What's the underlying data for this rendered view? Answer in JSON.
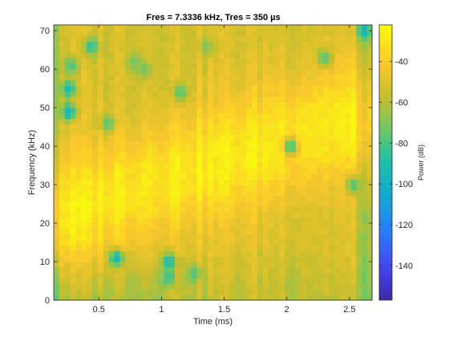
{
  "chart_data": {
    "type": "heatmap",
    "title": "Fres = 7.3336 kHz, Tres = 350 µs",
    "xlabel": "Time (ms)",
    "ylabel": "Frequency (kHz)",
    "xlim": [
      0.14,
      2.68
    ],
    "ylim": [
      0,
      71.5
    ],
    "xticks": [
      0.5,
      1,
      1.5,
      2,
      2.5
    ],
    "xtick_labels": [
      "0.5",
      "1",
      "1.5",
      "2",
      "2.5"
    ],
    "yticks": [
      0,
      10,
      20,
      30,
      40,
      50,
      60,
      70
    ],
    "ytick_labels": [
      "0",
      "10",
      "20",
      "30",
      "40",
      "50",
      "60",
      "70"
    ],
    "grid": false,
    "colormap": "parula",
    "colorbar": {
      "label": "Power (dB)",
      "range": [
        -157,
        -22
      ],
      "ticks": [
        -140,
        -120,
        -100,
        -80,
        -60,
        -40
      ],
      "tick_labels": [
        "-140",
        "-120",
        "-100",
        "-80",
        "-60",
        "-40"
      ]
    },
    "time_bins": {
      "start": 0.14,
      "width": 0.0439,
      "count": 58
    },
    "freq_bins": {
      "start": 0,
      "width": 1.43,
      "count": 50
    },
    "power_model": {
      "description_units": "dB",
      "ridge": {
        "start_time": 0.25,
        "start_freq": 23,
        "end_time": 2.4,
        "end_freq": 46,
        "peak_db": -28
      },
      "floor_db": -52
    },
    "dark_spots": [
      {
        "t": 0.26,
        "f": 55,
        "db": -95
      },
      {
        "t": 0.26,
        "f": 49,
        "db": -100
      },
      {
        "t": 0.28,
        "f": 61,
        "db": -82
      },
      {
        "t": 0.44,
        "f": 66,
        "db": -88
      },
      {
        "t": 0.57,
        "f": 46,
        "db": -78
      },
      {
        "t": 0.64,
        "f": 11,
        "db": -98
      },
      {
        "t": 0.78,
        "f": 62,
        "db": -72
      },
      {
        "t": 0.86,
        "f": 60,
        "db": -72
      },
      {
        "t": 1.06,
        "f": 10,
        "db": -95
      },
      {
        "t": 1.06,
        "f": 6,
        "db": -85
      },
      {
        "t": 1.15,
        "f": 54,
        "db": -80
      },
      {
        "t": 1.26,
        "f": 7,
        "db": -80
      },
      {
        "t": 1.36,
        "f": 66,
        "db": -70
      },
      {
        "t": 2.03,
        "f": 40,
        "db": -85
      },
      {
        "t": 2.3,
        "f": 63,
        "db": -80
      },
      {
        "t": 2.62,
        "f": 70,
        "db": -98
      },
      {
        "t": 2.53,
        "f": 30,
        "db": -80
      }
    ]
  }
}
